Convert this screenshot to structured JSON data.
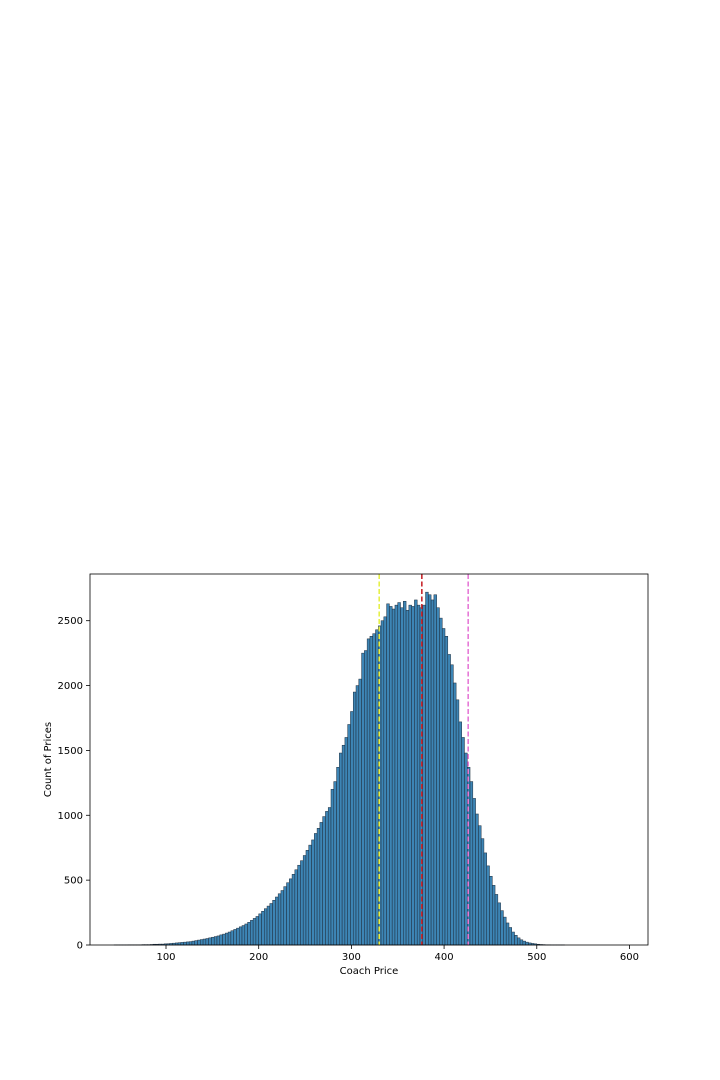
{
  "chart_data": {
    "type": "bar",
    "subtype": "histogram",
    "title": "",
    "xlabel": "Coach Price",
    "ylabel": "Count of Prices",
    "xlim": [
      18,
      620
    ],
    "ylim": [
      0,
      2860
    ],
    "x_ticks": [
      100,
      200,
      300,
      400,
      500,
      600
    ],
    "y_ticks": [
      0,
      500,
      1000,
      1500,
      2000,
      2500
    ],
    "grid": false,
    "legend": "none",
    "bar_color": "#3d85b5",
    "bar_edge_color": "#1e2d3d",
    "bin_start": 44,
    "bin_width": 3,
    "values": [
      1,
      1,
      1,
      1,
      1,
      2,
      2,
      2,
      2,
      2,
      3,
      3,
      3,
      4,
      6,
      6,
      7,
      7,
      9,
      10,
      12,
      14,
      16,
      18,
      20,
      22,
      24,
      26,
      30,
      34,
      38,
      42,
      46,
      50,
      55,
      60,
      65,
      70,
      78,
      84,
      92,
      100,
      110,
      120,
      130,
      140,
      150,
      162,
      175,
      190,
      205,
      220,
      240,
      260,
      280,
      300,
      320,
      345,
      370,
      395,
      420,
      450,
      480,
      510,
      545,
      580,
      615,
      650,
      690,
      730,
      770,
      810,
      860,
      900,
      945,
      990,
      1030,
      1060,
      1200,
      1260,
      1370,
      1480,
      1540,
      1600,
      1700,
      1800,
      1950,
      2000,
      2050,
      2250,
      2270,
      2360,
      2380,
      2400,
      2430,
      2460,
      2500,
      2530,
      2630,
      2610,
      2590,
      2620,
      2640,
      2600,
      2650,
      2580,
      2620,
      2610,
      2660,
      2620,
      2600,
      2620,
      2720,
      2700,
      2660,
      2700,
      2600,
      2520,
      2440,
      2380,
      2240,
      2160,
      2020,
      1890,
      1720,
      1600,
      1480,
      1370,
      1260,
      1130,
      1010,
      920,
      820,
      710,
      610,
      530,
      460,
      390,
      325,
      265,
      215,
      170,
      135,
      100,
      75,
      55,
      40,
      30,
      22,
      16,
      12,
      9,
      6,
      4,
      3,
      2,
      2,
      1,
      1,
      1,
      1,
      1
    ],
    "reference_lines": [
      {
        "x": 330,
        "color": "#e6f04a",
        "style": "dashed"
      },
      {
        "x": 376,
        "color": "#c8282d",
        "style": "dashed"
      },
      {
        "x": 426,
        "color": "#e67ad7",
        "style": "dashed"
      }
    ]
  }
}
